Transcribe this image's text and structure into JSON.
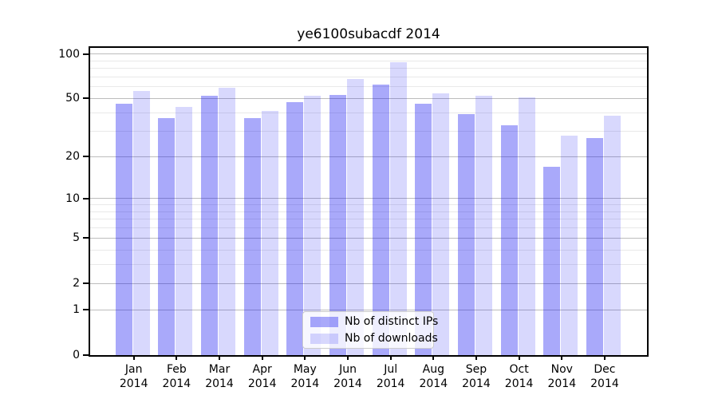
{
  "chart_data": {
    "type": "bar",
    "title": "ye6100subacdf 2014",
    "months": [
      "Jan",
      "Feb",
      "Mar",
      "Apr",
      "May",
      "Jun",
      "Jul",
      "Aug",
      "Sep",
      "Oct",
      "Nov",
      "Dec"
    ],
    "year_label": "2014",
    "series": [
      {
        "name": "Nb of distinct IPs",
        "color": "rgba(10,10,240,0.35)",
        "values": [
          46,
          37,
          52,
          37,
          47,
          53,
          62,
          46,
          39,
          33,
          17,
          27
        ]
      },
      {
        "name": "Nb of downloads",
        "color": "rgba(10,10,240,0.16)",
        "values": [
          56,
          44,
          59,
          41,
          52,
          68,
          88,
          54,
          52,
          51,
          28,
          38
        ]
      }
    ],
    "yscale": "log10(1+x)",
    "ylim": [
      0,
      110
    ],
    "yticks": [
      0,
      1,
      2,
      5,
      10,
      20,
      50,
      100
    ],
    "minor_gridlines": [
      3,
      4,
      6,
      7,
      8,
      9,
      30,
      40,
      60,
      70,
      80,
      90
    ],
    "grid": true,
    "legend_position": "lower-center",
    "colors": {
      "major_gridline": "#bdbdbd",
      "minor_gridline": "#e9e9e9",
      "spine": "#000000",
      "text": "#000000",
      "background": "#ffffff"
    }
  }
}
